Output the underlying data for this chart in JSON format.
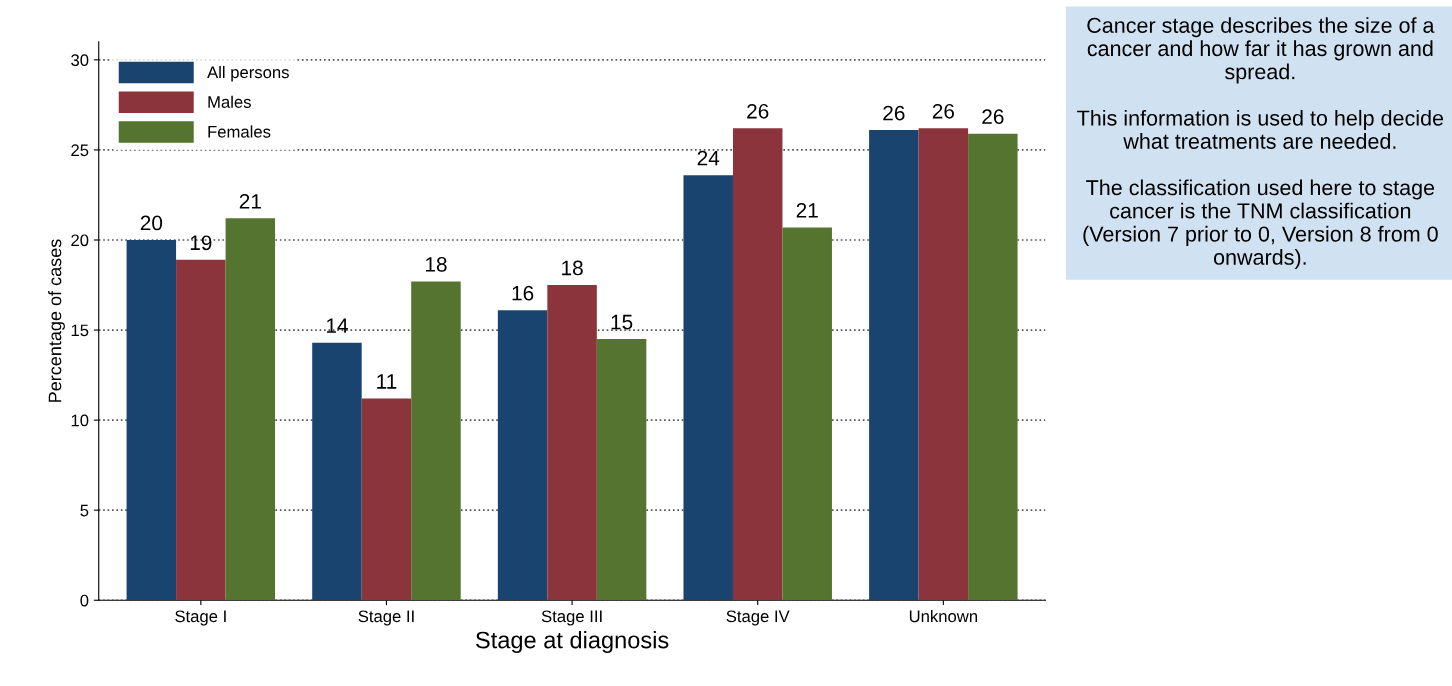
{
  "chart_data": {
    "type": "bar",
    "xlabel": "Stage at diagnosis",
    "ylabel": "Percentage of cases",
    "categories": [
      "Stage I",
      "Stage II",
      "Stage III",
      "Stage IV",
      "Unknown"
    ],
    "series": [
      {
        "name": "All persons",
        "color": "#1a4470",
        "values": [
          20.0,
          14.3,
          16.1,
          23.6,
          26.1
        ],
        "value_labels": [
          "20",
          "14",
          "16",
          "24",
          "26"
        ]
      },
      {
        "name": "Males",
        "color": "#8b343c",
        "values": [
          18.9,
          11.2,
          17.5,
          26.2,
          26.2
        ],
        "value_labels": [
          "19",
          "11",
          "18",
          "26",
          "26"
        ]
      },
      {
        "name": "Females",
        "color": "#55742f",
        "values": [
          21.2,
          17.7,
          14.5,
          20.7,
          25.9
        ],
        "value_labels": [
          "21",
          "18",
          "15",
          "21",
          "26"
        ]
      }
    ],
    "ylim": [
      0,
      31
    ],
    "yticks": [
      0,
      5,
      10,
      15,
      20,
      25,
      30
    ],
    "grid": "y",
    "legend": "top left",
    "annotations": [
      "Cancer stage describes the size of a cancer and how far it has grown and spread.\n\nThis information is used to help decide what treatments are needed.\n\nThe classification used here to stage cancer is the TNM classification (Version 7 prior to 0, Version 8 from 0 onwards)."
    ]
  }
}
